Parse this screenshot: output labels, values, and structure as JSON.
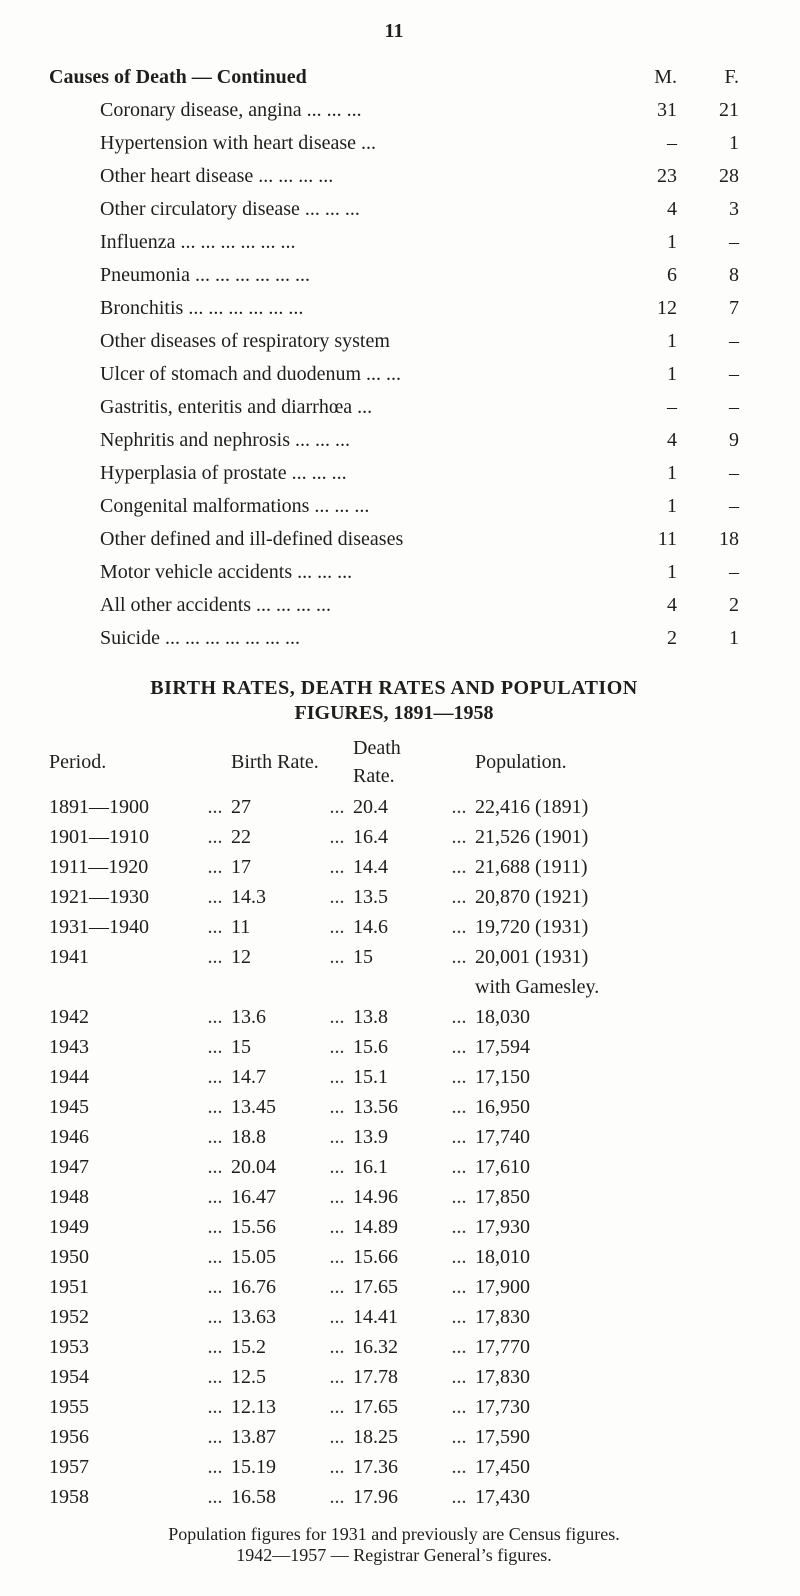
{
  "page_number": "11",
  "causes_of_death": {
    "title": "Causes of Death — Continued",
    "col_m": "M.",
    "col_f": "F.",
    "rows": [
      {
        "label": "Coronary disease, angina ...  ...  ...",
        "m": "31",
        "f": "21"
      },
      {
        "label": "Hypertension with heart disease   ...",
        "m": "–",
        "f": "1"
      },
      {
        "label": "Other heart disease   ...  ...  ...  ...",
        "m": "23",
        "f": "28"
      },
      {
        "label": "Other circulatory disease ...  ...  ...",
        "m": "4",
        "f": "3"
      },
      {
        "label": "Influenza        ...  ...  ...  ...  ...  ...",
        "m": "1",
        "f": "–"
      },
      {
        "label": "Pneumonia   ...  ...  ...  ...  ...  ...",
        "m": "6",
        "f": "8"
      },
      {
        "label": "Bronchitis    ...  ...  ...  ...  ...  ...",
        "m": "12",
        "f": "7"
      },
      {
        "label": "Other diseases of respiratory system",
        "m": "1",
        "f": "–"
      },
      {
        "label": "Ulcer of stomach and duodenum ...  ...",
        "m": "1",
        "f": "–"
      },
      {
        "label": "Gastritis, enteritis and diarrhœa  ...",
        "m": "–",
        "f": "–"
      },
      {
        "label": "Nephritis and nephrosis   ...  ...  ...",
        "m": "4",
        "f": "9"
      },
      {
        "label": "Hyperplasia of prostate   ...  ...  ...",
        "m": "1",
        "f": "–"
      },
      {
        "label": "Congenital malformations ...  ...  ...",
        "m": "1",
        "f": "–"
      },
      {
        "label": "Other defined and ill-defined diseases",
        "m": "11",
        "f": "18"
      },
      {
        "label": "Motor vehicle accidents   ...  ...  ...",
        "m": "1",
        "f": "–"
      },
      {
        "label": "All other accidents    ...  ...  ...  ...",
        "m": "4",
        "f": "2"
      },
      {
        "label": "Suicide  ...  ...  ...  ...  ...  ...  ...",
        "m": "2",
        "f": "1"
      }
    ]
  },
  "rates": {
    "title": "BIRTH RATES, DEATH RATES AND POPULATION",
    "subtitle": "FIGURES, 1891—1958",
    "headers": {
      "period": "Period.",
      "birth": "Birth Rate.",
      "death": "Death Rate.",
      "pop": "Population."
    },
    "rows": [
      {
        "period": "1891—1900",
        "birth": "27",
        "death": "20.4",
        "pop": "22,416 (1891)"
      },
      {
        "period": "1901—1910",
        "birth": "22",
        "death": "16.4",
        "pop": "21,526 (1901)"
      },
      {
        "period": "1911—1920",
        "birth": "17",
        "death": "14.4",
        "pop": "21,688 (1911)"
      },
      {
        "period": "1921—1930",
        "birth": "14.3",
        "death": "13.5",
        "pop": "20,870 (1921)"
      },
      {
        "period": "1931—1940",
        "birth": "11",
        "death": "14.6",
        "pop": "19,720 (1931)"
      },
      {
        "period": "1941",
        "birth": "12",
        "death": "15",
        "pop": "20,001 (1931)"
      },
      {
        "period": "",
        "birth": "",
        "death": "",
        "pop": "with Gamesley."
      },
      {
        "period": "1942",
        "birth": "13.6",
        "death": "13.8",
        "pop": "18,030"
      },
      {
        "period": "1943",
        "birth": "15",
        "death": "15.6",
        "pop": "17,594"
      },
      {
        "period": "1944",
        "birth": "14.7",
        "death": "15.1",
        "pop": "17,150"
      },
      {
        "period": "1945",
        "birth": "13.45",
        "death": "13.56",
        "pop": "16,950"
      },
      {
        "period": "1946",
        "birth": "18.8",
        "death": "13.9",
        "pop": "17,740"
      },
      {
        "period": "1947",
        "birth": "20.04",
        "death": "16.1",
        "pop": "17,610"
      },
      {
        "period": "1948",
        "birth": "16.47",
        "death": "14.96",
        "pop": "17,850"
      },
      {
        "period": "1949",
        "birth": "15.56",
        "death": "14.89",
        "pop": "17,930"
      },
      {
        "period": "1950",
        "birth": "15.05",
        "death": "15.66",
        "pop": "18,010"
      },
      {
        "period": "1951",
        "birth": "16.76",
        "death": "17.65",
        "pop": "17,900"
      },
      {
        "period": "1952",
        "birth": "13.63",
        "death": "14.41",
        "pop": "17,830"
      },
      {
        "period": "1953",
        "birth": "15.2",
        "death": "16.32",
        "pop": "17,770"
      },
      {
        "period": "1954",
        "birth": "12.5",
        "death": "17.78",
        "pop": "17,830"
      },
      {
        "period": "1955",
        "birth": "12.13",
        "death": "17.65",
        "pop": "17,730"
      },
      {
        "period": "1956",
        "birth": "13.87",
        "death": "18.25",
        "pop": "17,590"
      },
      {
        "period": "1957",
        "birth": "15.19",
        "death": "17.36",
        "pop": "17,450"
      },
      {
        "period": "1958",
        "birth": "16.58",
        "death": "17.96",
        "pop": "17,430"
      }
    ]
  },
  "footnote_line1": "Population figures for 1931 and previously are Census figures.",
  "footnote_line2": "1942—1957 — Registrar General’s figures."
}
